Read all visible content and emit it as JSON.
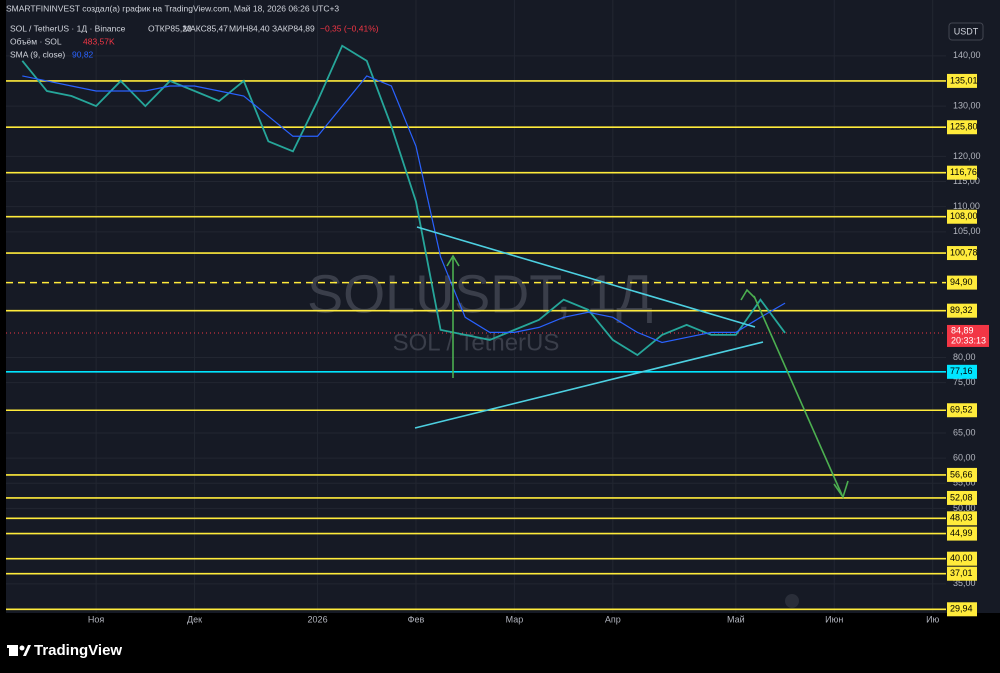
{
  "header": {
    "credit": "SMARTFININVEST создал(а) график на TradingView.com, Май 18, 2026 06:26 UTC+3",
    "symbol": "SOL / TetherUS · 1Д · Binance",
    "open": "ОТКР85,23",
    "high": "МАКС85,47",
    "low": "МИН84,40",
    "close": "ЗАКР84,89",
    "change": "−0,35 (−0,41%)",
    "volume_label": "Объём · SOL",
    "volume_value": "483,57K",
    "sma_label": "SMA (9, close)",
    "sma_value": "90,82",
    "currency": "USDT",
    "watermark": "SOLUSDT, 1Д",
    "watermark_sub": "SOL / TetherUS",
    "countdown": "20:33:13"
  },
  "footer": {
    "brand": "TradingView"
  },
  "chart_data": {
    "type": "line",
    "categories": [
      null,
      null,
      null,
      "Ноя",
      null,
      null,
      null,
      "Дек",
      null,
      null,
      null,
      null,
      "2026",
      null,
      null,
      null,
      "Фев",
      null,
      null,
      null,
      "Мар",
      null,
      null,
      null,
      "Апр",
      null,
      null,
      null,
      null,
      "Май",
      null,
      null,
      null,
      "Июн",
      null,
      null,
      null,
      "Ию"
    ],
    "series": [
      {
        "name": "SOL / TetherUS",
        "color": "#26a69a",
        "values": [
          139,
          133,
          132,
          130,
          135,
          130,
          135,
          133,
          131,
          135,
          123,
          121,
          131,
          142,
          139,
          126,
          111,
          85.5,
          84.5,
          83.5,
          85.5,
          87.5,
          91.5,
          89.5,
          83.5,
          80.5,
          84.5,
          86.5,
          84.5,
          84.5,
          91.5,
          84.89,
          null,
          null,
          null,
          null,
          null,
          null
        ]
      },
      {
        "name": "SMA (9, close)",
        "color": "#2962ff",
        "values": [
          136,
          135,
          134,
          133,
          133,
          133,
          134,
          134,
          133,
          132,
          128,
          124,
          124,
          130,
          136,
          134,
          122,
          100,
          88,
          85,
          85,
          86,
          88,
          89,
          88,
          85,
          83,
          84,
          85,
          85,
          88,
          90.82,
          null,
          null,
          null,
          null,
          null,
          null
        ]
      }
    ],
    "ylim": [
      29.2,
      151.1
    ],
    "yticks": [
      {
        "value": 140,
        "label": "140,00"
      },
      {
        "value": 130,
        "label": "130,00"
      },
      {
        "value": 120,
        "label": "120,00"
      },
      {
        "value": 115,
        "label": "115,00"
      },
      {
        "value": 110,
        "label": "110,00"
      },
      {
        "value": 105,
        "label": "105,00"
      },
      {
        "value": 80,
        "label": "80,00"
      },
      {
        "value": 75,
        "label": "75,00"
      },
      {
        "value": 65,
        "label": "65,00"
      },
      {
        "value": 60,
        "label": "60,00"
      },
      {
        "value": 55,
        "label": "55,00"
      },
      {
        "value": 50,
        "label": "50,00"
      },
      {
        "value": 35,
        "label": "35,00"
      }
    ],
    "grid": true,
    "levels": [
      {
        "value": 135.01,
        "label": "135,01",
        "color": "#ffeb3b",
        "dashed": false
      },
      {
        "value": 125.8,
        "label": "125,80",
        "color": "#ffeb3b",
        "dashed": false
      },
      {
        "value": 116.76,
        "label": "116,76",
        "color": "#ffeb3b",
        "dashed": false
      },
      {
        "value": 108,
        "label": "108,00",
        "color": "#ffeb3b",
        "dashed": false
      },
      {
        "value": 100.78,
        "label": "100,78",
        "color": "#ffeb3b",
        "dashed": false
      },
      {
        "value": 94.9,
        "label": "94,90",
        "color": "#ffeb3b",
        "dashed": true
      },
      {
        "value": 89.32,
        "label": "89,32",
        "color": "#ffeb3b",
        "dashed": false
      },
      {
        "value": 77.16,
        "label": "77,16",
        "color": "#00e5ff",
        "dashed": false
      },
      {
        "value": 69.52,
        "label": "69,52",
        "color": "#ffeb3b",
        "dashed": false
      },
      {
        "value": 56.66,
        "label": "56,66",
        "color": "#ffeb3b",
        "dashed": false
      },
      {
        "value": 52.08,
        "label": "52,08",
        "color": "#ffeb3b",
        "dashed": false
      },
      {
        "value": 48.03,
        "label": "48,03",
        "color": "#ffeb3b",
        "dashed": false
      },
      {
        "value": 44.99,
        "label": "44,99",
        "color": "#ffeb3b",
        "dashed": false
      },
      {
        "value": 40,
        "label": "40,00",
        "color": "#ffeb3b",
        "dashed": false
      },
      {
        "value": 37.01,
        "label": "37,01",
        "color": "#ffeb3b",
        "dashed": false
      },
      {
        "value": 29.94,
        "label": "29,94",
        "color": "#ffeb3b",
        "dashed": false
      }
    ],
    "last_price": {
      "value": 84.89,
      "label": "84,89",
      "color": "#f23645"
    }
  }
}
